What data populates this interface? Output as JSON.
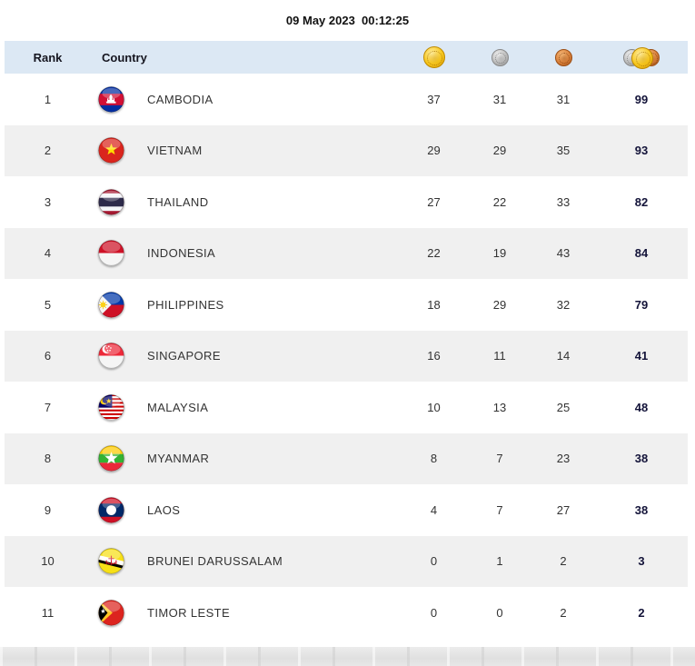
{
  "header": {
    "datetime": "09 May 2023  00:12:25"
  },
  "table": {
    "columns": {
      "rank": "Rank",
      "country": "Country",
      "gold_icon": "gold-medal-icon",
      "silver_icon": "silver-medal-icon",
      "bronze_icon": "bronze-medal-icon",
      "total_icon": "total-medals-icon"
    },
    "rows": [
      {
        "rank": "1",
        "country": "CAMBODIA",
        "flag": "cambodia",
        "gold": "37",
        "silver": "31",
        "bronze": "31",
        "total": "99"
      },
      {
        "rank": "2",
        "country": "VIETNAM",
        "flag": "vietnam",
        "gold": "29",
        "silver": "29",
        "bronze": "35",
        "total": "93"
      },
      {
        "rank": "3",
        "country": "THAILAND",
        "flag": "thailand",
        "gold": "27",
        "silver": "22",
        "bronze": "33",
        "total": "82"
      },
      {
        "rank": "4",
        "country": "INDONESIA",
        "flag": "indonesia",
        "gold": "22",
        "silver": "19",
        "bronze": "43",
        "total": "84"
      },
      {
        "rank": "5",
        "country": "PHILIPPINES",
        "flag": "philippines",
        "gold": "18",
        "silver": "29",
        "bronze": "32",
        "total": "79"
      },
      {
        "rank": "6",
        "country": "SINGAPORE",
        "flag": "singapore",
        "gold": "16",
        "silver": "11",
        "bronze": "14",
        "total": "41"
      },
      {
        "rank": "7",
        "country": "MALAYSIA",
        "flag": "malaysia",
        "gold": "10",
        "silver": "13",
        "bronze": "25",
        "total": "48"
      },
      {
        "rank": "8",
        "country": "MYANMAR",
        "flag": "myanmar",
        "gold": "8",
        "silver": "7",
        "bronze": "23",
        "total": "38"
      },
      {
        "rank": "9",
        "country": "LAOS",
        "flag": "laos",
        "gold": "4",
        "silver": "7",
        "bronze": "27",
        "total": "38"
      },
      {
        "rank": "10",
        "country": "BRUNEI DARUSSALAM",
        "flag": "brunei",
        "gold": "0",
        "silver": "1",
        "bronze": "2",
        "total": "3"
      },
      {
        "rank": "11",
        "country": "TIMOR LESTE",
        "flag": "timor-leste",
        "gold": "0",
        "silver": "0",
        "bronze": "2",
        "total": "2"
      }
    ]
  },
  "colors": {
    "header_bg": "#dce8f4",
    "alt_row_bg": "#f0f0f0",
    "total_text": "#131339",
    "gold": "#f7c71d",
    "silver": "#bcbcbc",
    "bronze": "#d9803a"
  }
}
